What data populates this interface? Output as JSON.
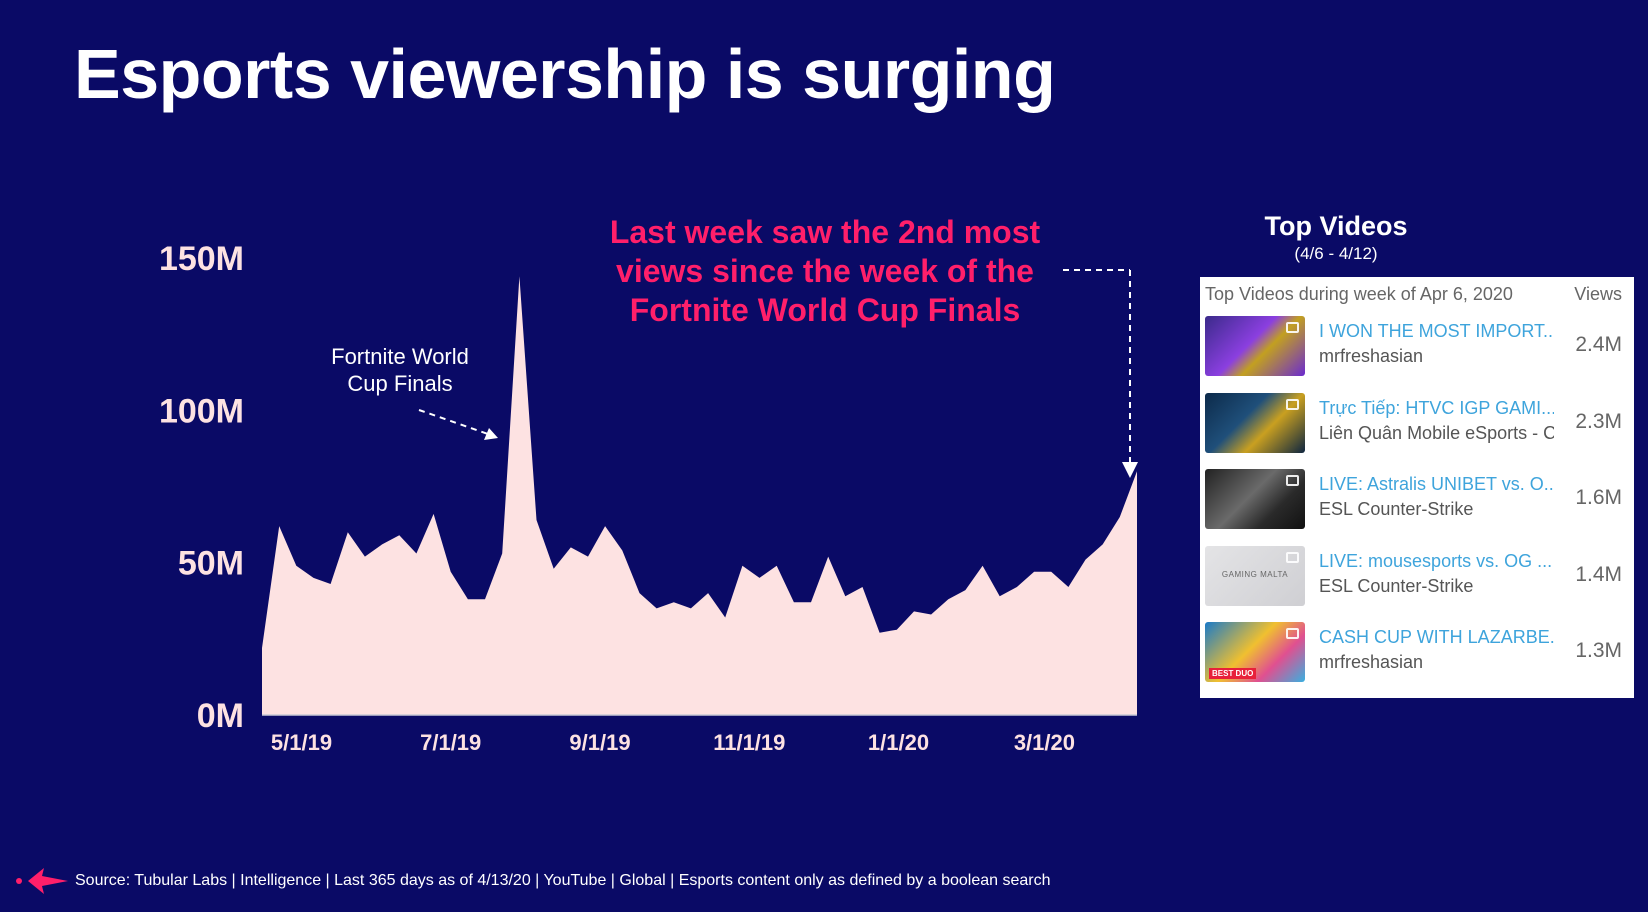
{
  "slide": {
    "title": "Esports viewership is surging",
    "source": "Source: Tubular Labs | Intelligence | Last 365 days as of 4/13/20 | YouTube | Global | Esports content only as defined by a boolean search"
  },
  "callout": {
    "lines": [
      "Last week saw the 2nd most",
      "views since the week of the",
      "Fortnite World Cup Finals"
    ]
  },
  "annotation": {
    "lines": [
      "Fortnite World",
      "Cup Finals"
    ]
  },
  "chart_data": {
    "type": "area",
    "title": "",
    "xlabel": "",
    "ylabel": "",
    "ylim": [
      0,
      150
    ],
    "unit": "M",
    "y_ticks": [
      "0M",
      "50M",
      "100M",
      "150M"
    ],
    "x_tick_labels": [
      "5/1/19",
      "7/1/19",
      "9/1/19",
      "11/1/19",
      "1/1/20",
      "3/1/20"
    ],
    "fill_color": "#fde2e2",
    "series": [
      {
        "values": [
          22,
          62,
          49,
          45,
          43,
          60,
          52,
          56,
          59,
          53,
          66,
          47,
          38,
          38,
          53,
          144,
          64,
          48,
          55,
          52,
          62,
          54,
          40,
          35,
          37,
          35,
          40,
          32,
          49,
          45,
          49,
          37,
          37,
          52,
          39,
          42,
          27,
          28,
          34,
          33,
          38,
          41,
          49,
          39,
          42,
          47,
          47,
          42,
          51,
          56,
          65,
          80
        ]
      }
    ]
  },
  "top_videos": {
    "heading": "Top Videos",
    "subheading": "(4/6 - 4/12)",
    "table_label": "Top Videos during week of Apr 6, 2020",
    "views_header": "Views",
    "items": [
      {
        "title": "I WON THE MOST IMPORT...",
        "channel": "mrfreshasian",
        "views": "2.4M"
      },
      {
        "title": "Trực Tiếp: HTVC IGP GAMI...",
        "channel": "Liên Quân Mobile eSports - C",
        "views": "2.3M"
      },
      {
        "title": "LIVE: Astralis UNIBET vs. O...",
        "channel": "ESL Counter-Strike",
        "views": "1.6M"
      },
      {
        "title": "LIVE: mousesports vs. OG ...",
        "channel": "ESL Counter-Strike",
        "views": "1.4M"
      },
      {
        "title": "CASH CUP WITH LAZARBE...",
        "channel": "mrfreshasian",
        "views": "1.3M"
      }
    ],
    "thumb_labels": {
      "malta": "GAMING MALTA",
      "best_duo": "BEST DUO"
    }
  }
}
